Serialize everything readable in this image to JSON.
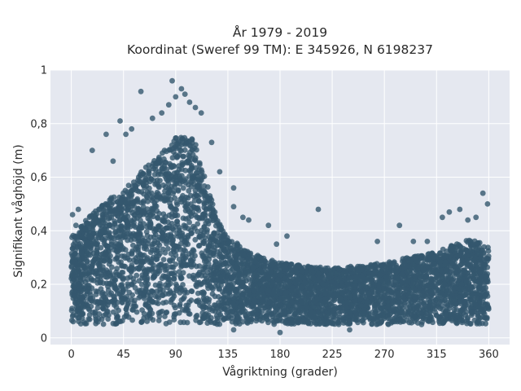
{
  "chart_data": {
    "type": "scatter",
    "title_lines": [
      "År 1979 - 2019",
      "Koordinat (Sweref 99 TM): E 345926, N 6198237"
    ],
    "xlabel": "Vågriktning (grader)",
    "ylabel": "Signifikant våghöjd (m)",
    "xlim": [
      -18,
      378
    ],
    "ylim": [
      -0.025,
      1.0
    ],
    "x_ticks": [
      0,
      45,
      90,
      135,
      180,
      225,
      270,
      315,
      360
    ],
    "y_ticks": [
      0,
      0.2,
      0.4,
      0.6,
      0.8,
      1
    ],
    "y_tick_labels": [
      "0",
      "0,2",
      "0,4",
      "0,6",
      "0,8",
      "1"
    ],
    "grid": true,
    "colors": {
      "marker": "#34576e",
      "plot_bg": "#e5e8f0",
      "grid": "#ffffff"
    },
    "envelope": {
      "description_points": [
        {
          "x": 0,
          "y": 0.38
        },
        {
          "x": 15,
          "y": 0.45
        },
        {
          "x": 30,
          "y": 0.52
        },
        {
          "x": 45,
          "y": 0.55
        },
        {
          "x": 60,
          "y": 0.62
        },
        {
          "x": 75,
          "y": 0.68
        },
        {
          "x": 90,
          "y": 0.75
        },
        {
          "x": 105,
          "y": 0.75
        },
        {
          "x": 115,
          "y": 0.62
        },
        {
          "x": 125,
          "y": 0.45
        },
        {
          "x": 135,
          "y": 0.38
        },
        {
          "x": 150,
          "y": 0.33
        },
        {
          "x": 165,
          "y": 0.3
        },
        {
          "x": 180,
          "y": 0.28
        },
        {
          "x": 200,
          "y": 0.27
        },
        {
          "x": 225,
          "y": 0.26
        },
        {
          "x": 250,
          "y": 0.27
        },
        {
          "x": 270,
          "y": 0.28
        },
        {
          "x": 290,
          "y": 0.3
        },
        {
          "x": 315,
          "y": 0.32
        },
        {
          "x": 330,
          "y": 0.35
        },
        {
          "x": 345,
          "y": 0.37
        },
        {
          "x": 360,
          "y": 0.34
        }
      ],
      "min_y": 0.05
    },
    "outliers": [
      {
        "x": 87,
        "y": 0.96
      },
      {
        "x": 95,
        "y": 0.93
      },
      {
        "x": 98,
        "y": 0.91
      },
      {
        "x": 90,
        "y": 0.9
      },
      {
        "x": 102,
        "y": 0.88
      },
      {
        "x": 84,
        "y": 0.87
      },
      {
        "x": 60,
        "y": 0.92
      },
      {
        "x": 42,
        "y": 0.81
      },
      {
        "x": 107,
        "y": 0.86
      },
      {
        "x": 112,
        "y": 0.84
      },
      {
        "x": 78,
        "y": 0.84
      },
      {
        "x": 70,
        "y": 0.82
      },
      {
        "x": 52,
        "y": 0.78
      },
      {
        "x": 47,
        "y": 0.76
      },
      {
        "x": 30,
        "y": 0.76
      },
      {
        "x": 18,
        "y": 0.7
      },
      {
        "x": 36,
        "y": 0.66
      },
      {
        "x": 121,
        "y": 0.73
      },
      {
        "x": 128,
        "y": 0.62
      },
      {
        "x": 140,
        "y": 0.56
      },
      {
        "x": 140,
        "y": 0.49
      },
      {
        "x": 148,
        "y": 0.45
      },
      {
        "x": 153,
        "y": 0.44
      },
      {
        "x": 170,
        "y": 0.42
      },
      {
        "x": 186,
        "y": 0.38
      },
      {
        "x": 213,
        "y": 0.48
      },
      {
        "x": 177,
        "y": 0.35
      },
      {
        "x": 264,
        "y": 0.36
      },
      {
        "x": 283,
        "y": 0.42
      },
      {
        "x": 295,
        "y": 0.36
      },
      {
        "x": 307,
        "y": 0.36
      },
      {
        "x": 320,
        "y": 0.45
      },
      {
        "x": 326,
        "y": 0.47
      },
      {
        "x": 335,
        "y": 0.48
      },
      {
        "x": 355,
        "y": 0.54
      },
      {
        "x": 359,
        "y": 0.5
      },
      {
        "x": 349,
        "y": 0.45
      },
      {
        "x": 342,
        "y": 0.44
      },
      {
        "x": 6,
        "y": 0.48
      },
      {
        "x": 4,
        "y": 0.42
      },
      {
        "x": 1,
        "y": 0.46
      },
      {
        "x": 180,
        "y": 0.02
      },
      {
        "x": 240,
        "y": 0.03
      },
      {
        "x": 140,
        "y": 0.03
      }
    ]
  }
}
